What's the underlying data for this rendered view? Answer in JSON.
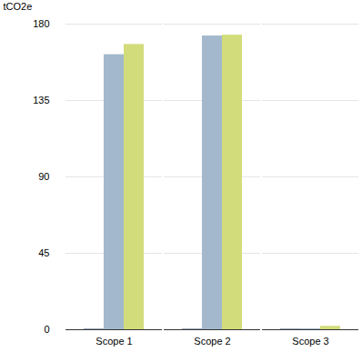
{
  "chart_data": {
    "type": "bar",
    "categories": [
      "Scope 1",
      "Scope 2",
      "Scope 3"
    ],
    "series": [
      {
        "color": "#9aaabb",
        "values": [
          0.5,
          0.5,
          0.5
        ]
      },
      {
        "color": "#a3b8cc",
        "values": [
          162,
          173,
          0.5
        ]
      },
      {
        "color": "#d2dc7a",
        "values": [
          168,
          173.5,
          2
        ]
      }
    ],
    "y_label": "tCO2e",
    "ylim": [
      0,
      180
    ],
    "yticks": [
      0,
      45,
      90,
      135,
      180
    ],
    "grid": true
  }
}
